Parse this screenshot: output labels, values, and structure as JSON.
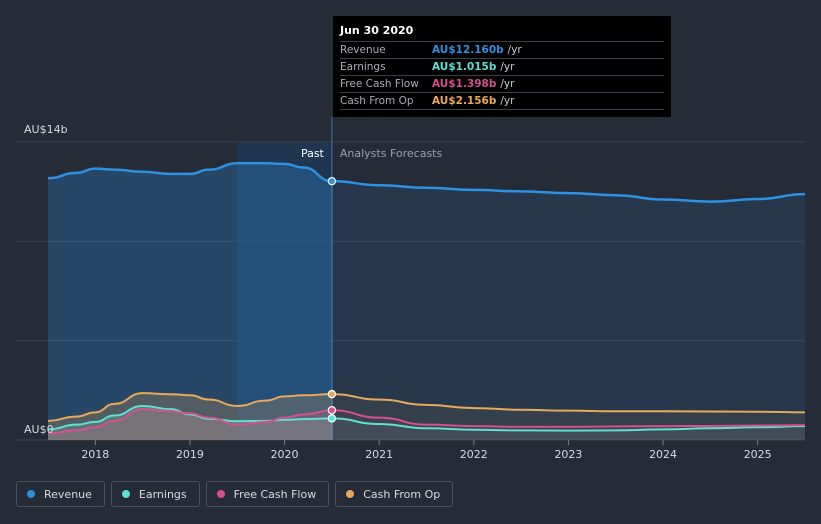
{
  "colors": {
    "revenue": "#2e90e0",
    "earnings": "#5ee0d2",
    "free_cash_flow": "#d5508e",
    "cash_from_op": "#e8a95a"
  },
  "tooltip": {
    "date": "Jun 30 2020",
    "rows": [
      {
        "label": "Revenue",
        "value": "AU$12.160b",
        "unit": "/yr"
      },
      {
        "label": "Earnings",
        "value": "AU$1.015b",
        "unit": "/yr"
      },
      {
        "label": "Free Cash Flow",
        "value": "AU$1.398b",
        "unit": "/yr"
      },
      {
        "label": "Cash From Op",
        "value": "AU$2.156b",
        "unit": "/yr"
      }
    ]
  },
  "legend": {
    "items": [
      {
        "label": "Revenue"
      },
      {
        "label": "Earnings"
      },
      {
        "label": "Free Cash Flow"
      },
      {
        "label": "Cash From Op"
      }
    ]
  },
  "chart_data": {
    "type": "line",
    "title": "",
    "ylabel": "",
    "y_unit": "AU$b",
    "ylim": [
      0,
      14
    ],
    "xlim": [
      2017.5,
      2025.5
    ],
    "y_tick_labels": [
      "AU$14b",
      "AU$0"
    ],
    "x_ticks": [
      2018,
      2019,
      2020,
      2021,
      2022,
      2023,
      2024,
      2025
    ],
    "x_tick_labels": [
      "2018",
      "2019",
      "2020",
      "2021",
      "2022",
      "2023",
      "2024",
      "2025"
    ],
    "past_label": "Past",
    "forecast_label": "Analysts Forecasts",
    "divider_x": 2020.5,
    "highlight_x": [
      2019.5,
      2020.5
    ],
    "series": [
      {
        "name": "Revenue",
        "color_key": "revenue",
        "x": [
          2017.5,
          2017.8,
          2018.0,
          2018.2,
          2018.5,
          2018.8,
          2019.0,
          2019.2,
          2019.5,
          2019.8,
          2020.0,
          2020.2,
          2020.5,
          2021.0,
          2021.5,
          2022.0,
          2022.5,
          2023.0,
          2023.5,
          2024.0,
          2024.5,
          2025.0,
          2025.5
        ],
        "y": [
          12.3,
          12.55,
          12.75,
          12.7,
          12.6,
          12.5,
          12.5,
          12.7,
          13.0,
          13.0,
          12.97,
          12.8,
          12.16,
          11.97,
          11.85,
          11.75,
          11.68,
          11.6,
          11.5,
          11.3,
          11.2,
          11.32,
          11.55
        ]
      },
      {
        "name": "Earnings",
        "color_key": "earnings",
        "x": [
          2017.5,
          2017.8,
          2018.0,
          2018.2,
          2018.5,
          2018.8,
          2019.0,
          2019.2,
          2019.5,
          2019.8,
          2020.0,
          2020.2,
          2020.5,
          2021.0,
          2021.5,
          2022.0,
          2022.5,
          2023.0,
          2023.5,
          2024.0,
          2024.5,
          2025.0,
          2025.5
        ],
        "y": [
          0.5,
          0.72,
          0.85,
          1.15,
          1.6,
          1.45,
          1.2,
          1.0,
          0.88,
          0.9,
          0.95,
          0.98,
          1.015,
          0.75,
          0.55,
          0.48,
          0.45,
          0.44,
          0.45,
          0.5,
          0.55,
          0.6,
          0.65
        ]
      },
      {
        "name": "Free Cash Flow",
        "color_key": "free_cash_flow",
        "x": [
          2017.5,
          2017.8,
          2018.0,
          2018.2,
          2018.5,
          2018.8,
          2019.0,
          2019.2,
          2019.5,
          2019.8,
          2020.0,
          2020.2,
          2020.5,
          2021.0,
          2021.5,
          2022.0,
          2022.5,
          2023.0,
          2023.5,
          2024.0,
          2024.5,
          2025.0,
          2025.5
        ],
        "y": [
          0.3,
          0.45,
          0.6,
          0.9,
          1.45,
          1.35,
          1.25,
          1.05,
          0.72,
          0.85,
          1.05,
          1.2,
          1.398,
          1.05,
          0.72,
          0.65,
          0.62,
          0.62,
          0.64,
          0.65,
          0.66,
          0.68,
          0.7
        ]
      },
      {
        "name": "Cash From Op",
        "color_key": "cash_from_op",
        "x": [
          2017.5,
          2017.8,
          2018.0,
          2018.2,
          2018.5,
          2018.8,
          2019.0,
          2019.2,
          2019.5,
          2019.8,
          2020.0,
          2020.2,
          2020.5,
          2021.0,
          2021.5,
          2022.0,
          2022.5,
          2023.0,
          2023.5,
          2024.0,
          2024.5,
          2025.0,
          2025.5
        ],
        "y": [
          0.9,
          1.1,
          1.3,
          1.7,
          2.2,
          2.15,
          2.1,
          1.9,
          1.6,
          1.85,
          2.05,
          2.1,
          2.156,
          1.9,
          1.65,
          1.5,
          1.42,
          1.38,
          1.35,
          1.35,
          1.34,
          1.33,
          1.3
        ]
      }
    ]
  }
}
